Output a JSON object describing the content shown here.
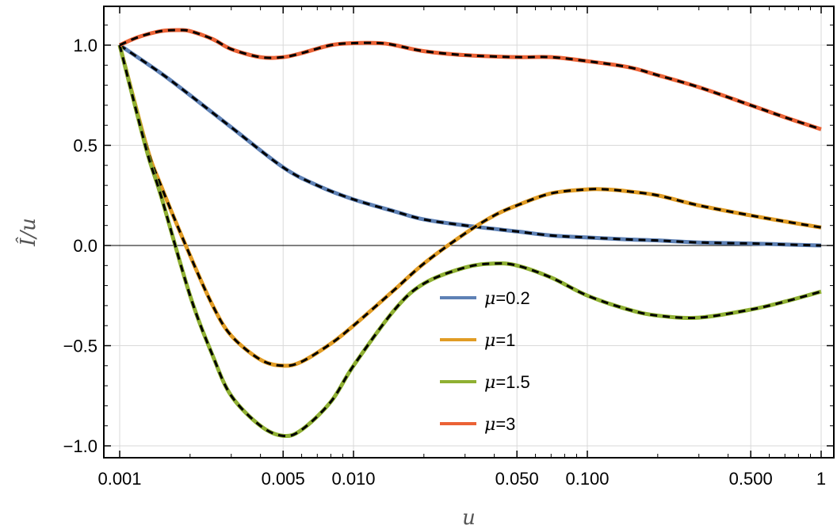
{
  "chart_data": {
    "type": "line",
    "title": "",
    "xlabel": "u",
    "ylabel": "Î/u",
    "xscale": "log",
    "xlim": [
      0.001,
      1
    ],
    "ylim": [
      -1.05,
      1.2
    ],
    "grid": true,
    "legend_position": "center-right",
    "x_ticks": [
      {
        "value": 0.001,
        "label": "0.001"
      },
      {
        "value": 0.005,
        "label": "0.005"
      },
      {
        "value": 0.01,
        "label": "0.010"
      },
      {
        "value": 0.05,
        "label": "0.050"
      },
      {
        "value": 0.1,
        "label": "0.100"
      },
      {
        "value": 0.5,
        "label": "0.500"
      },
      {
        "value": 1,
        "label": "1"
      }
    ],
    "y_ticks": [
      {
        "value": 1.0,
        "label": "1.0"
      },
      {
        "value": 0.5,
        "label": "0.5"
      },
      {
        "value": 0.0,
        "label": "0.0"
      },
      {
        "value": -0.5,
        "label": "−0.5"
      },
      {
        "value": -1.0,
        "label": "−1.0"
      }
    ],
    "series": [
      {
        "name": "μ=0.2",
        "color": "#5E81B5",
        "x": [
          0.001,
          0.0015,
          0.002,
          0.003,
          0.005,
          0.007,
          0.01,
          0.015,
          0.02,
          0.03,
          0.05,
          0.07,
          0.1,
          0.15,
          0.2,
          0.3,
          0.5,
          0.7,
          1.0
        ],
        "y": [
          1.0,
          0.86,
          0.75,
          0.59,
          0.39,
          0.3,
          0.23,
          0.17,
          0.13,
          0.1,
          0.07,
          0.05,
          0.04,
          0.03,
          0.025,
          0.015,
          0.01,
          0.005,
          0.0
        ]
      },
      {
        "name": "μ=1",
        "color": "#E19C24",
        "x": [
          0.001,
          0.0013,
          0.0015,
          0.002,
          0.0025,
          0.003,
          0.004,
          0.005,
          0.006,
          0.008,
          0.01,
          0.015,
          0.02,
          0.03,
          0.04,
          0.05,
          0.07,
          0.1,
          0.12,
          0.15,
          0.2,
          0.3,
          0.5,
          0.7,
          1.0
        ],
        "y": [
          1.0,
          0.5,
          0.3,
          -0.05,
          -0.3,
          -0.45,
          -0.57,
          -0.6,
          -0.58,
          -0.49,
          -0.4,
          -0.22,
          -0.09,
          0.06,
          0.15,
          0.2,
          0.26,
          0.28,
          0.28,
          0.27,
          0.25,
          0.2,
          0.15,
          0.12,
          0.09
        ]
      },
      {
        "name": "μ=1.5",
        "color": "#8FB032",
        "x": [
          0.001,
          0.0013,
          0.0015,
          0.002,
          0.0025,
          0.003,
          0.004,
          0.005,
          0.006,
          0.008,
          0.01,
          0.015,
          0.02,
          0.03,
          0.04,
          0.05,
          0.07,
          0.1,
          0.15,
          0.2,
          0.3,
          0.5,
          0.7,
          1.0
        ],
        "y": [
          1.0,
          0.48,
          0.25,
          -0.25,
          -0.55,
          -0.75,
          -0.9,
          -0.95,
          -0.92,
          -0.78,
          -0.6,
          -0.32,
          -0.19,
          -0.11,
          -0.09,
          -0.1,
          -0.16,
          -0.25,
          -0.32,
          -0.35,
          -0.36,
          -0.32,
          -0.28,
          -0.23
        ]
      },
      {
        "name": "μ=3",
        "color": "#EB6235",
        "x": [
          0.001,
          0.0012,
          0.0015,
          0.0018,
          0.002,
          0.0025,
          0.003,
          0.004,
          0.005,
          0.006,
          0.008,
          0.01,
          0.013,
          0.015,
          0.02,
          0.03,
          0.05,
          0.07,
          0.1,
          0.15,
          0.2,
          0.3,
          0.5,
          0.7,
          1.0
        ],
        "y": [
          1.0,
          1.04,
          1.07,
          1.075,
          1.07,
          1.03,
          0.98,
          0.94,
          0.94,
          0.96,
          1.0,
          1.01,
          1.01,
          1.0,
          0.97,
          0.95,
          0.94,
          0.94,
          0.92,
          0.89,
          0.85,
          0.79,
          0.7,
          0.64,
          0.58
        ]
      }
    ],
    "overlay_style": "black-dashed"
  }
}
